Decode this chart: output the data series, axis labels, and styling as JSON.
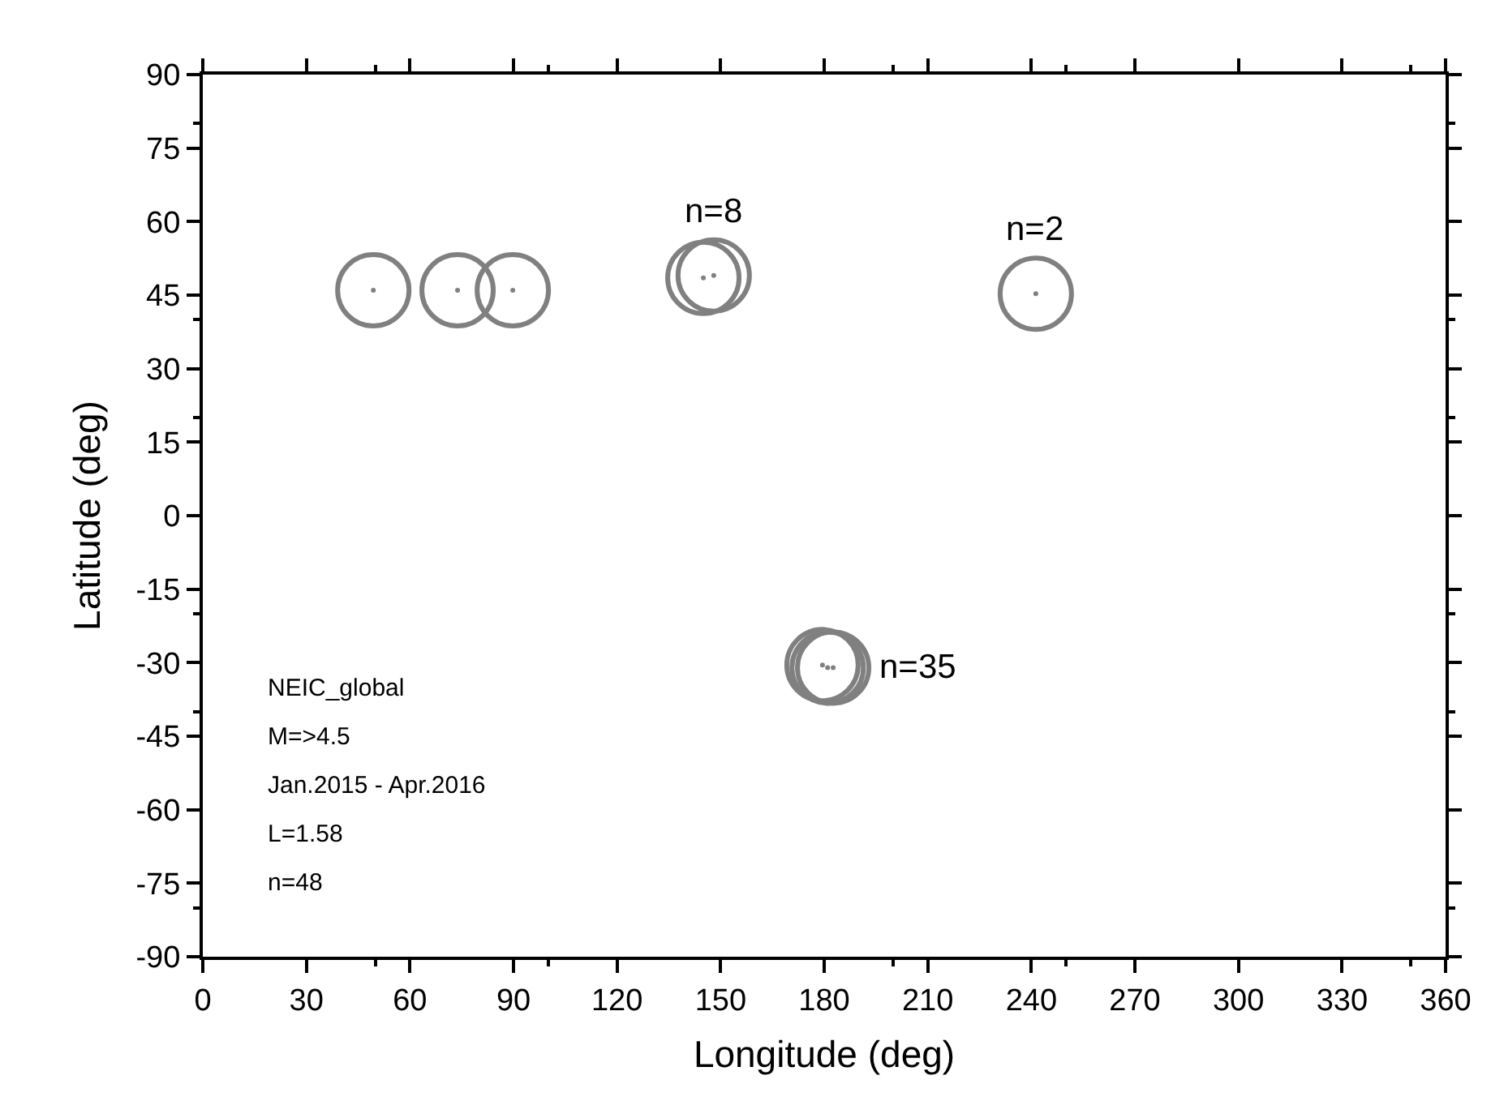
{
  "chart_data": {
    "type": "scatter",
    "xlabel": "Longitude (deg)",
    "ylabel": "Latitude (deg)",
    "x": [
      49.4,
      73.8,
      89.8,
      145,
      148,
      241.3,
      179.5,
      181,
      182.6
    ],
    "series": [
      {
        "color": "#808080",
        "values": [
          46,
          46,
          46,
          48.5,
          49,
          45.3,
          -30.5,
          -31,
          -31
        ]
      }
    ],
    "marker": "circle",
    "legend": false,
    "xlim": [
      0,
      360
    ],
    "xticks": [
      0,
      30,
      60,
      90,
      120,
      150,
      180,
      210,
      240,
      270,
      300,
      330,
      360
    ],
    "ylim": [
      -90,
      90
    ],
    "yticks": [
      -90,
      -75,
      -60,
      -45,
      -30,
      -15,
      0,
      15,
      30,
      45,
      60,
      75,
      90
    ],
    "annotations": [
      {
        "text": "n=8",
        "x": 148,
        "y": 49
      },
      {
        "text": "n=2",
        "x": 241.3,
        "y": 45.3
      },
      {
        "text": "n=35",
        "x": 182.6,
        "y": -31
      },
      "NEIC_global",
      "M=>4.5",
      "Jan.2015 - Apr.2016",
      "L=1.58",
      "n=48"
    ]
  }
}
